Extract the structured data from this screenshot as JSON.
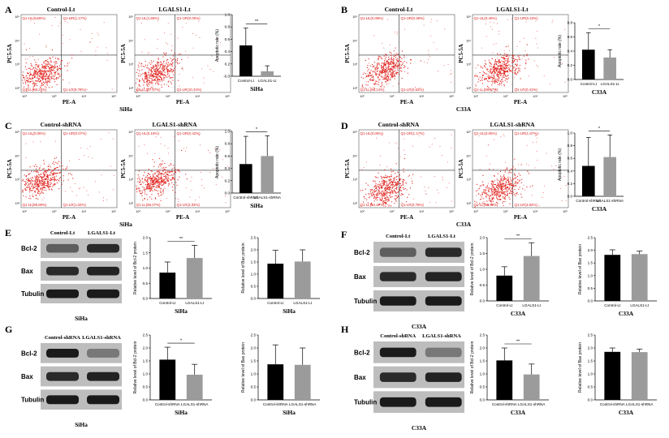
{
  "panels": [
    {
      "letter": "A",
      "cell": "SiHa",
      "kind": "flow",
      "plots": [
        {
          "title": "Control-Lt",
          "q": [
            "Q1-UL(0.69%)",
            "Q1-UR(1.17%)",
            "Q1-LL(88.33%)",
            "Q1-LR(9.78%)"
          ]
        },
        {
          "title": "LGALS1-Lt",
          "q": [
            "Q1-UL(1.69%)",
            "Q1-UR(0.00%)",
            "Q1-LL(87.97%)",
            "Q1-LR(10.34%)"
          ]
        }
      ],
      "xaxis": "PE-A",
      "yaxis": "PC5-5A",
      "chart": {
        "type": "bar",
        "categories": [
          "Control-Lt",
          "LGALS1-Lt"
        ],
        "values": [
          0.5,
          0.08
        ],
        "errors": [
          0.28,
          0.09
        ],
        "ylim": [
          0,
          1.0
        ],
        "yticks": [
          "0.0",
          "0.2",
          "0.4",
          "0.6",
          "0.8",
          "1.0"
        ],
        "ylabel": "Apoptotic rate (%)",
        "xlabel": "SiHa",
        "sig": "**"
      }
    },
    {
      "letter": "B",
      "cell": "C33A",
      "kind": "flow",
      "plots": [
        {
          "title": "Control-Lt",
          "q": [
            "Q1-UL(0.05%)",
            "Q1-UR(0.19%)",
            "Q1-LL(98.14%)",
            "Q1-LR(0.63%)"
          ]
        },
        {
          "title": "LGALS1-Lt",
          "q": [
            "Q1-UL(0.49%)",
            "Q1-UR(0.23%)",
            "Q1-LL(98.87%)",
            "Q1-LR(0.41%)"
          ]
        }
      ],
      "xaxis": "PE-A",
      "yaxis": "PC5-5A",
      "chart": {
        "type": "bar",
        "categories": [
          "Control-Lt",
          "LGALS1-Lt"
        ],
        "values": [
          0.42,
          0.31
        ],
        "errors": [
          0.24,
          0.11
        ],
        "ylim": [
          0,
          0.8
        ],
        "yticks": [
          "0.0",
          "0.2",
          "0.4",
          "0.6",
          "0.8"
        ],
        "ylabel": "Apoptotic rate (%)",
        "xlabel": "C33A",
        "sig": "*"
      }
    },
    {
      "letter": "C",
      "cell": "SiHa",
      "kind": "flow",
      "plots": [
        {
          "title": "Control-shRNA",
          "q": [
            "Q1-UL(0.06%)",
            "Q1-UR(0.07%)",
            "Q1-LL(98.89%)",
            "Q1-LR(1.02%)"
          ]
        },
        {
          "title": "LGALS1-shRNA",
          "q": [
            "Q1-UL(0.19%)",
            "Q1-UR(0.42%)",
            "Q1-LL(96.07%)",
            "Q1-LR(3.33%)"
          ]
        }
      ],
      "xaxis": "PE-A",
      "yaxis": "PC5-5A",
      "chart": {
        "type": "bar",
        "categories": [
          "Control-shRNA",
          "LGALS1-shRNA"
        ],
        "values": [
          0.47,
          0.6
        ],
        "errors": [
          0.45,
          0.33
        ],
        "ylim": [
          0,
          1.0
        ],
        "yticks": [
          "0.0",
          "0.2",
          "0.4",
          "0.6",
          "0.8",
          "1.0"
        ],
        "ylabel": "Apoptotic rate (%)",
        "xlabel": "SiHa",
        "sig": "*"
      }
    },
    {
      "letter": "D",
      "cell": "C33A",
      "kind": "flow",
      "plots": [
        {
          "title": "Control-shRNA",
          "q": [
            "Q1-UL(0.06%)",
            "Q1-UR(1.17%)",
            "Q1-LL(94.47%)",
            "Q1-LR(0.78%)"
          ]
        },
        {
          "title": "LGALS1-shRNA",
          "q": [
            "Q1-UL(0.05%)",
            "Q1-UR(1.67%)",
            "Q1-LL(93.49%)",
            "Q1-LR(4.84%)"
          ]
        }
      ],
      "xaxis": "PE-A",
      "yaxis": "PC5-5A",
      "chart": {
        "type": "bar",
        "categories": [
          "Control-shRNA",
          "LGALS1-shRNA"
        ],
        "values": [
          0.48,
          0.62
        ],
        "errors": [
          0.45,
          0.35
        ],
        "ylim": [
          0,
          1.0
        ],
        "yticks": [
          "0.0",
          "0.2",
          "0.4",
          "0.6",
          "0.8",
          "1.0"
        ],
        "ylabel": "Apoptotic rate (%)",
        "xlabel": "C33A",
        "sig": "*"
      }
    },
    {
      "letter": "E",
      "cell": "SiHa",
      "kind": "wb",
      "lanes": [
        "Control-Lt",
        "LGALS1-Lt"
      ],
      "rows": [
        "Bcl-2",
        "Bax",
        "Tubulin"
      ],
      "charts": [
        {
          "type": "bar",
          "categories": [
            "Control-Lt",
            "LGALS1-Lt"
          ],
          "values": [
            0.85,
            1.33
          ],
          "errors": [
            0.35,
            0.42
          ],
          "ylim": [
            0,
            2.0
          ],
          "yticks": [
            "0.0",
            "0.5",
            "1.0",
            "1.5",
            "2.0"
          ],
          "ylabel": "Relative level of Bcl-2 protein",
          "xlabel": "SiHa",
          "sig": "**"
        },
        {
          "type": "bar",
          "categories": [
            "Control-Lt",
            "LGALS1-Lt"
          ],
          "values": [
            1.43,
            1.52
          ],
          "errors": [
            0.55,
            0.48
          ],
          "ylim": [
            0,
            2.5
          ],
          "yticks": [
            "0.0",
            "0.5",
            "1.0",
            "1.5",
            "2.0",
            "2.5"
          ],
          "ylabel": "Relative level of Bax protein",
          "xlabel": "SiHa",
          "sig": ""
        }
      ]
    },
    {
      "letter": "F",
      "cell": "C33A",
      "kind": "wb",
      "lanes": [
        "Control-Lt",
        "LGALS1-Lt"
      ],
      "rows": [
        "Bcl-2",
        "Bax",
        "Tubulin"
      ],
      "charts": [
        {
          "type": "bar",
          "categories": [
            "Control-Lt",
            "LGALS1-Lt"
          ],
          "values": [
            0.8,
            1.42
          ],
          "errors": [
            0.28,
            0.42
          ],
          "ylim": [
            0,
            2.0
          ],
          "yticks": [
            "0.0",
            "0.5",
            "1.0",
            "1.5",
            "2.0"
          ],
          "ylabel": "Relative level of Bcl-2 protein",
          "xlabel": "C33A",
          "sig": "**"
        },
        {
          "type": "bar",
          "categories": [
            "Control-Lt",
            "LGALS1-Lt"
          ],
          "values": [
            1.82,
            1.85
          ],
          "errors": [
            0.2,
            0.12
          ],
          "ylim": [
            0,
            2.5
          ],
          "yticks": [
            "0.0",
            "0.5",
            "1.0",
            "1.5",
            "2.0",
            "2.5"
          ],
          "ylabel": "Relative level of Bax protein",
          "xlabel": "C33A",
          "sig": ""
        }
      ]
    },
    {
      "letter": "G",
      "cell": "SiHa",
      "kind": "wb",
      "lanes": [
        "Control-shRNA",
        "LGALS1-shRNA"
      ],
      "rows": [
        "Bcl-2",
        "Bax",
        "Tubulin"
      ],
      "charts": [
        {
          "type": "bar",
          "categories": [
            "Control-shRNA",
            "LGALS1-shRNA"
          ],
          "values": [
            1.55,
            0.97
          ],
          "errors": [
            0.48,
            0.4
          ],
          "ylim": [
            0,
            2.5
          ],
          "yticks": [
            "0.0",
            "0.5",
            "1.0",
            "1.5",
            "2.0",
            "2.5"
          ],
          "ylabel": "Relative level of Bcl-2 protein",
          "xlabel": "SiHa",
          "sig": "*"
        },
        {
          "type": "bar",
          "categories": [
            "Control-shRNA",
            "LGALS1-shRNA"
          ],
          "values": [
            1.37,
            1.35
          ],
          "errors": [
            0.75,
            0.65
          ],
          "ylim": [
            0,
            2.5
          ],
          "yticks": [
            "0.0",
            "0.5",
            "1.0",
            "1.5",
            "2.0",
            "2.5"
          ],
          "ylabel": "Relative level of Bax protein",
          "xlabel": "SiHa",
          "sig": ""
        }
      ]
    },
    {
      "letter": "H",
      "cell": "C33A",
      "kind": "wb",
      "lanes": [
        "Control-shRNA",
        "LGALS1-shRNA"
      ],
      "rows": [
        "Bcl-2",
        "Bax",
        "Tubulin"
      ],
      "charts": [
        {
          "type": "bar",
          "categories": [
            "Control-shRNA",
            "LGALS1-shRNA"
          ],
          "values": [
            1.52,
            0.98
          ],
          "errors": [
            0.48,
            0.4
          ],
          "ylim": [
            0,
            2.5
          ],
          "yticks": [
            "0.0",
            "0.5",
            "1.0",
            "1.5",
            "2.0",
            "2.5"
          ],
          "ylabel": "Relative level of Bcl-2 protein",
          "xlabel": "C33A",
          "sig": "**"
        },
        {
          "type": "bar",
          "categories": [
            "Control-shRNA",
            "LGALS1-shRNA"
          ],
          "values": [
            1.85,
            1.84
          ],
          "errors": [
            0.15,
            0.12
          ],
          "ylim": [
            0,
            2.5
          ],
          "yticks": [
            "0.0",
            "0.5",
            "1.0",
            "1.5",
            "2.0",
            "2.5"
          ],
          "ylabel": "Relative level of Bax protein",
          "xlabel": "C33A",
          "sig": ""
        }
      ]
    }
  ],
  "chart_data": [
    {
      "type": "bar",
      "title": "A",
      "categories": [
        "Control-Lt",
        "LGALS1-Lt"
      ],
      "values": [
        0.5,
        0.08
      ],
      "ylabel": "Apoptotic rate (%)",
      "xlabel": "SiHa",
      "ylim": [
        0,
        1.0
      ]
    },
    {
      "type": "bar",
      "title": "B",
      "categories": [
        "Control-Lt",
        "LGALS1-Lt"
      ],
      "values": [
        0.42,
        0.31
      ],
      "ylabel": "Apoptotic rate (%)",
      "xlabel": "C33A",
      "ylim": [
        0,
        0.8
      ]
    },
    {
      "type": "bar",
      "title": "C",
      "categories": [
        "Control-shRNA",
        "LGALS1-shRNA"
      ],
      "values": [
        0.47,
        0.6
      ],
      "ylabel": "Apoptotic rate (%)",
      "xlabel": "SiHa",
      "ylim": [
        0,
        1.0
      ]
    },
    {
      "type": "bar",
      "title": "D",
      "categories": [
        "Control-shRNA",
        "LGALS1-shRNA"
      ],
      "values": [
        0.48,
        0.62
      ],
      "ylabel": "Apoptotic rate (%)",
      "xlabel": "C33A",
      "ylim": [
        0,
        1.0
      ]
    },
    {
      "type": "bar",
      "title": "E",
      "categories": [
        "Control-Lt",
        "LGALS1-Lt"
      ],
      "series": [
        {
          "name": "Bcl-2",
          "values": [
            0.85,
            1.33
          ]
        },
        {
          "name": "Bax",
          "values": [
            1.43,
            1.52
          ]
        }
      ],
      "xlabel": "SiHa"
    },
    {
      "type": "bar",
      "title": "F",
      "categories": [
        "Control-Lt",
        "LGALS1-Lt"
      ],
      "series": [
        {
          "name": "Bcl-2",
          "values": [
            0.8,
            1.42
          ]
        },
        {
          "name": "Bax",
          "values": [
            1.82,
            1.85
          ]
        }
      ],
      "xlabel": "C33A"
    },
    {
      "type": "bar",
      "title": "G",
      "categories": [
        "Control-shRNA",
        "LGALS1-shRNA"
      ],
      "series": [
        {
          "name": "Bcl-2",
          "values": [
            1.55,
            0.97
          ]
        },
        {
          "name": "Bax",
          "values": [
            1.37,
            1.35
          ]
        }
      ],
      "xlabel": "SiHa"
    },
    {
      "type": "bar",
      "title": "H",
      "categories": [
        "Control-shRNA",
        "LGALS1-shRNA"
      ],
      "series": [
        {
          "name": "Bcl-2",
          "values": [
            1.52,
            0.98
          ]
        },
        {
          "name": "Bax",
          "values": [
            1.85,
            1.84
          ]
        }
      ],
      "xlabel": "C33A"
    }
  ]
}
